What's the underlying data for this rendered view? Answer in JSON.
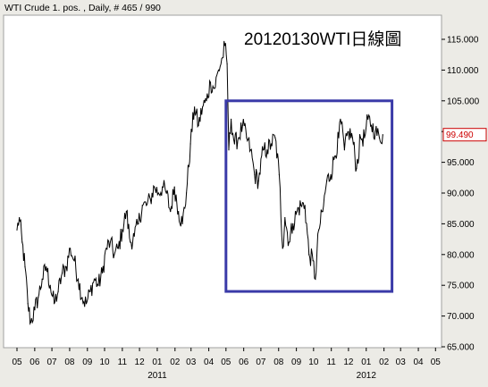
{
  "window": {
    "caption": "WTI Crude 1. pos. , Daily, # 465 / 990"
  },
  "chart_data": {
    "type": "line",
    "title": "20120130WTI日線圖",
    "xlabel": "",
    "ylabel": "",
    "x_range": [
      "2010-05-01",
      "2012-05-31"
    ],
    "ylim": [
      64.5,
      118
    ],
    "y_ticks": [
      "65.000",
      "70.000",
      "75.000",
      "80.000",
      "85.000",
      "90.000",
      "95.000",
      "100.000",
      "105.000",
      "110.000",
      "115.000"
    ],
    "x_ticks": [
      {
        "date": "2010-05-01",
        "label": "05"
      },
      {
        "date": "2010-06-01",
        "label": "06"
      },
      {
        "date": "2010-07-01",
        "label": "07"
      },
      {
        "date": "2010-08-01",
        "label": "08"
      },
      {
        "date": "2010-09-01",
        "label": "09"
      },
      {
        "date": "2010-10-01",
        "label": "10"
      },
      {
        "date": "2010-11-01",
        "label": "11"
      },
      {
        "date": "2010-12-01",
        "label": "12"
      },
      {
        "date": "2011-01-01",
        "label": "01"
      },
      {
        "date": "2011-02-01",
        "label": "02"
      },
      {
        "date": "2011-03-01",
        "label": "03"
      },
      {
        "date": "2011-04-01",
        "label": "04"
      },
      {
        "date": "2011-05-01",
        "label": "05"
      },
      {
        "date": "2011-06-01",
        "label": "06"
      },
      {
        "date": "2011-07-01",
        "label": "07"
      },
      {
        "date": "2011-08-01",
        "label": "08"
      },
      {
        "date": "2011-09-01",
        "label": "09"
      },
      {
        "date": "2011-10-01",
        "label": "10"
      },
      {
        "date": "2011-11-01",
        "label": "11"
      },
      {
        "date": "2011-12-01",
        "label": "12"
      },
      {
        "date": "2012-01-01",
        "label": "01"
      },
      {
        "date": "2012-02-01",
        "label": "02"
      },
      {
        "date": "2012-03-01",
        "label": "03"
      },
      {
        "date": "2012-04-01",
        "label": "04"
      },
      {
        "date": "2012-05-01",
        "label": "05"
      }
    ],
    "year_labels": [
      {
        "date": "2011-01-01",
        "label": "2011"
      },
      {
        "date": "2012-01-01",
        "label": "2012"
      }
    ],
    "last_price": {
      "value": 99.49,
      "label": "99.490"
    },
    "highlight_box": {
      "x0": "2011-05-01",
      "x1": "2012-02-15",
      "y0": 74,
      "y1": 105
    },
    "series": [
      {
        "color": "#000000",
        "points": [
          [
            "2010-05-01",
            84
          ],
          [
            "2010-05-05",
            86
          ],
          [
            "2010-05-10",
            82
          ],
          [
            "2010-05-15",
            78
          ],
          [
            "2010-05-20",
            72
          ],
          [
            "2010-05-25",
            69
          ],
          [
            "2010-06-01",
            71
          ],
          [
            "2010-06-07",
            73
          ],
          [
            "2010-06-14",
            76
          ],
          [
            "2010-06-21",
            78
          ],
          [
            "2010-06-28",
            75
          ],
          [
            "2010-07-05",
            72
          ],
          [
            "2010-07-12",
            74
          ],
          [
            "2010-07-19",
            77
          ],
          [
            "2010-07-26",
            78
          ],
          [
            "2010-08-02",
            81
          ],
          [
            "2010-08-09",
            79
          ],
          [
            "2010-08-16",
            76
          ],
          [
            "2010-08-23",
            73
          ],
          [
            "2010-08-30",
            72
          ],
          [
            "2010-09-06",
            74
          ],
          [
            "2010-09-13",
            76
          ],
          [
            "2010-09-20",
            75
          ],
          [
            "2010-09-27",
            77
          ],
          [
            "2010-10-04",
            81
          ],
          [
            "2010-10-11",
            82
          ],
          [
            "2010-10-18",
            80
          ],
          [
            "2010-10-25",
            81
          ],
          [
            "2010-11-01",
            84
          ],
          [
            "2010-11-08",
            87
          ],
          [
            "2010-11-15",
            82
          ],
          [
            "2010-11-22",
            83
          ],
          [
            "2010-11-29",
            85
          ],
          [
            "2010-12-06",
            88
          ],
          [
            "2010-12-13",
            88
          ],
          [
            "2010-12-20",
            89
          ],
          [
            "2010-12-27",
            91
          ],
          [
            "2011-01-03",
            90
          ],
          [
            "2011-01-10",
            91
          ],
          [
            "2011-01-17",
            90
          ],
          [
            "2011-01-24",
            87
          ],
          [
            "2011-01-31",
            91
          ],
          [
            "2011-02-07",
            87
          ],
          [
            "2011-02-14",
            85
          ],
          [
            "2011-02-21",
            90
          ],
          [
            "2011-02-28",
            98
          ],
          [
            "2011-03-07",
            104
          ],
          [
            "2011-03-14",
            101
          ],
          [
            "2011-03-21",
            104
          ],
          [
            "2011-03-28",
            105
          ],
          [
            "2011-04-04",
            108
          ],
          [
            "2011-04-11",
            107
          ],
          [
            "2011-04-18",
            110
          ],
          [
            "2011-04-25",
            112
          ],
          [
            "2011-04-29",
            114
          ],
          [
            "2011-05-03",
            111
          ],
          [
            "2011-05-06",
            97
          ],
          [
            "2011-05-10",
            102
          ],
          [
            "2011-05-16",
            98
          ],
          [
            "2011-05-23",
            99
          ],
          [
            "2011-05-30",
            101
          ],
          [
            "2011-06-06",
            99
          ],
          [
            "2011-06-13",
            97
          ],
          [
            "2011-06-20",
            93
          ],
          [
            "2011-06-27",
            92
          ],
          [
            "2011-07-05",
            97
          ],
          [
            "2011-07-12",
            97
          ],
          [
            "2011-07-19",
            98
          ],
          [
            "2011-07-26",
            99
          ],
          [
            "2011-08-02",
            93
          ],
          [
            "2011-08-08",
            81
          ],
          [
            "2011-08-12",
            86
          ],
          [
            "2011-08-19",
            82
          ],
          [
            "2011-08-26",
            85
          ],
          [
            "2011-09-02",
            87
          ],
          [
            "2011-09-09",
            88
          ],
          [
            "2011-09-16",
            88
          ],
          [
            "2011-09-23",
            80
          ],
          [
            "2011-09-30",
            79
          ],
          [
            "2011-10-04",
            76
          ],
          [
            "2011-10-10",
            84
          ],
          [
            "2011-10-17",
            87
          ],
          [
            "2011-10-24",
            92
          ],
          [
            "2011-10-31",
            93
          ],
          [
            "2011-11-07",
            96
          ],
          [
            "2011-11-14",
            99
          ],
          [
            "2011-11-17",
            102
          ],
          [
            "2011-11-24",
            97
          ],
          [
            "2011-12-01",
            100
          ],
          [
            "2011-12-08",
            99
          ],
          [
            "2011-12-15",
            94
          ],
          [
            "2011-12-22",
            99
          ],
          [
            "2011-12-29",
            99
          ],
          [
            "2012-01-04",
            102
          ],
          [
            "2012-01-10",
            101
          ],
          [
            "2012-01-17",
            100
          ],
          [
            "2012-01-24",
            99
          ],
          [
            "2012-01-30",
            99.49
          ]
        ]
      }
    ]
  }
}
